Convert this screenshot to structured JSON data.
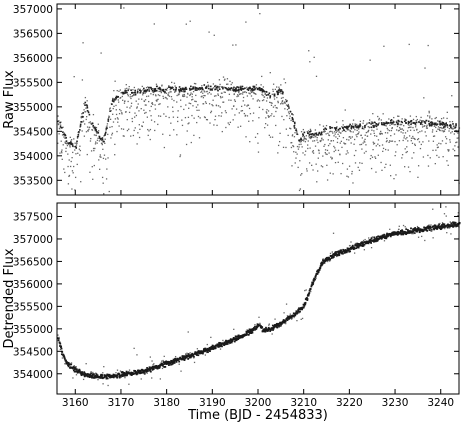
{
  "chart_data": [
    {
      "type": "scatter",
      "ylabel": "Raw Flux",
      "xlabel": "",
      "xlim": [
        3156,
        3244
      ],
      "ylim": [
        3532500,
        357100
      ],
      "yticks": [
        353500,
        354000,
        354500,
        355000,
        355500,
        356000,
        356500,
        357000
      ],
      "xticks": [
        3160,
        3170,
        3180,
        3190,
        3200,
        3210,
        3220,
        3230,
        3240
      ],
      "xtick_labels_shown": false,
      "baseline_points": [
        {
          "x": 3156.5,
          "y": 354700
        },
        {
          "x": 3158,
          "y": 354300
        },
        {
          "x": 3160,
          "y": 354200
        },
        {
          "x": 3162,
          "y": 355100
        },
        {
          "x": 3164,
          "y": 354600
        },
        {
          "x": 3166,
          "y": 354300
        },
        {
          "x": 3168,
          "y": 355150
        },
        {
          "x": 3170,
          "y": 355300
        },
        {
          "x": 3175,
          "y": 355350
        },
        {
          "x": 3180,
          "y": 355380
        },
        {
          "x": 3185,
          "y": 355380
        },
        {
          "x": 3190,
          "y": 355400
        },
        {
          "x": 3195,
          "y": 355380
        },
        {
          "x": 3200,
          "y": 355400
        },
        {
          "x": 3203,
          "y": 355250
        },
        {
          "x": 3205,
          "y": 355350
        },
        {
          "x": 3207,
          "y": 354900
        },
        {
          "x": 3209,
          "y": 354300
        },
        {
          "x": 3210,
          "y": 354500
        },
        {
          "x": 3212,
          "y": 354450
        },
        {
          "x": 3215,
          "y": 354550
        },
        {
          "x": 3220,
          "y": 354600
        },
        {
          "x": 3225,
          "y": 354650
        },
        {
          "x": 3230,
          "y": 354700
        },
        {
          "x": 3235,
          "y": 354700
        },
        {
          "x": 3240,
          "y": 354650
        },
        {
          "x": 3244,
          "y": 354600
        }
      ]
    },
    {
      "type": "scatter",
      "ylabel": "Detrended Flux",
      "xlabel": "Time (BJD - 2454833)",
      "xlim": [
        3156,
        3244
      ],
      "ylim": [
        353550,
        357800
      ],
      "yticks": [
        354000,
        354500,
        355000,
        355500,
        356000,
        356500,
        357000,
        357500
      ],
      "xticks": [
        3160,
        3170,
        3180,
        3190,
        3200,
        3210,
        3220,
        3230,
        3240
      ],
      "xtick_labels_shown": true,
      "trend_points": [
        {
          "x": 3156.2,
          "y": 354800
        },
        {
          "x": 3157,
          "y": 354450
        },
        {
          "x": 3158,
          "y": 354250
        },
        {
          "x": 3160,
          "y": 354100
        },
        {
          "x": 3162,
          "y": 354000
        },
        {
          "x": 3165,
          "y": 353950
        },
        {
          "x": 3168,
          "y": 353960
        },
        {
          "x": 3170,
          "y": 354000
        },
        {
          "x": 3175,
          "y": 354080
        },
        {
          "x": 3180,
          "y": 354250
        },
        {
          "x": 3185,
          "y": 354420
        },
        {
          "x": 3190,
          "y": 354600
        },
        {
          "x": 3195,
          "y": 354800
        },
        {
          "x": 3198,
          "y": 354950
        },
        {
          "x": 3200,
          "y": 355100
        },
        {
          "x": 3201,
          "y": 354970
        },
        {
          "x": 3203,
          "y": 355050
        },
        {
          "x": 3205,
          "y": 355150
        },
        {
          "x": 3208,
          "y": 355350
        },
        {
          "x": 3210,
          "y": 355550
        },
        {
          "x": 3212,
          "y": 356100
        },
        {
          "x": 3214,
          "y": 356500
        },
        {
          "x": 3216,
          "y": 356650
        },
        {
          "x": 3220,
          "y": 356800
        },
        {
          "x": 3225,
          "y": 357000
        },
        {
          "x": 3230,
          "y": 357150
        },
        {
          "x": 3235,
          "y": 357220
        },
        {
          "x": 3240,
          "y": 357300
        },
        {
          "x": 3244,
          "y": 357350
        }
      ]
    }
  ]
}
